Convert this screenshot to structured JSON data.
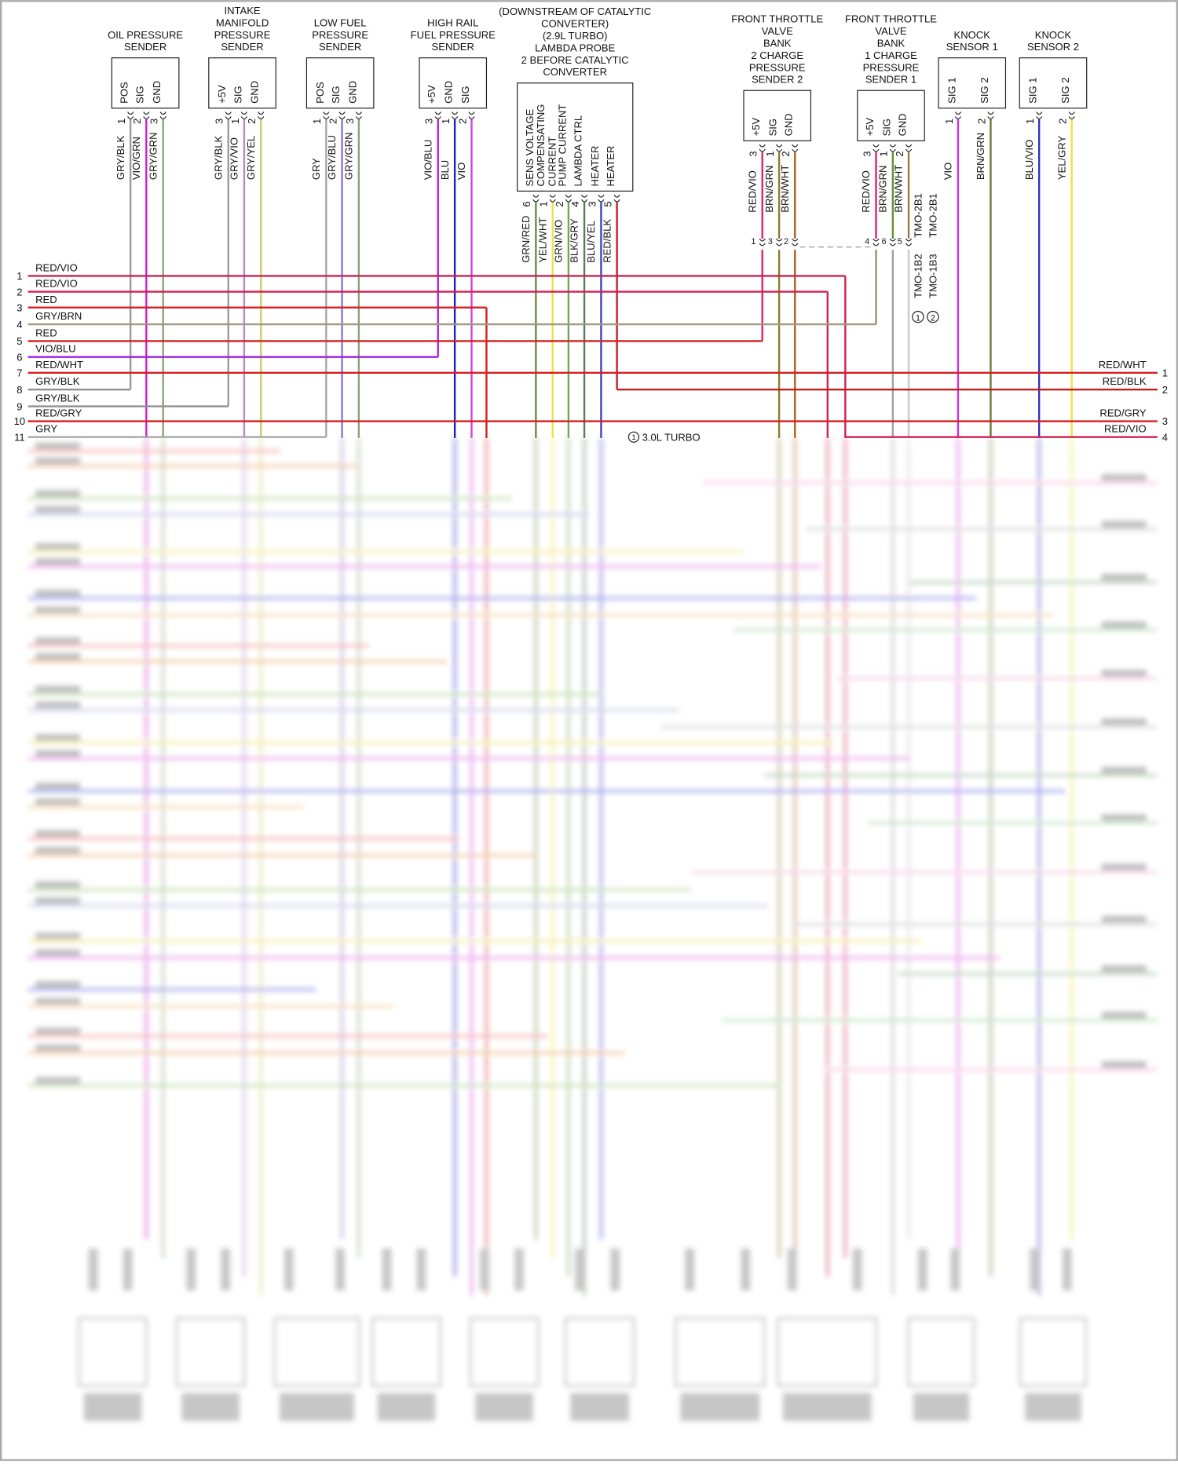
{
  "components": [
    {
      "title": [
        "OIL PRESSURE",
        "SENDER"
      ],
      "pins": [
        {
          "num": 1,
          "name": [
            "POS"
          ],
          "wire": "GRY/BLK",
          "color": "#9a9a9a"
        },
        {
          "num": 2,
          "name": [
            "SIG"
          ],
          "wire": "VIO/GRN",
          "color": "#c81fc8"
        },
        {
          "num": 3,
          "name": [
            "GND"
          ],
          "wire": "GRY/GRN",
          "color": "#8aa27a"
        }
      ]
    },
    {
      "title": [
        "INTAKE",
        "MANIFOLD",
        "PRESSURE",
        "SENDER"
      ],
      "pins": [
        {
          "num": 3,
          "name": [
            "+5V"
          ],
          "wire": "GRY/BLK",
          "color": "#9a9a9a"
        },
        {
          "num": 1,
          "name": [
            "SIG"
          ],
          "wire": "GRY/VIO",
          "color": "#b888c8"
        },
        {
          "num": 2,
          "name": [
            "GND"
          ],
          "wire": "GRY/YEL",
          "color": "#d0cc60"
        }
      ]
    },
    {
      "title": [
        "LOW FUEL",
        "PRESSURE",
        "SENDER"
      ],
      "pins": [
        {
          "num": 1,
          "name": [
            "POS"
          ],
          "wire": "GRY",
          "color": "#a8a8a8"
        },
        {
          "num": 2,
          "name": [
            "SIG"
          ],
          "wire": "GRY/BLU",
          "color": "#8c78c0"
        },
        {
          "num": 3,
          "name": [
            "GND"
          ],
          "wire": "GRY/GRN",
          "color": "#8aa27a"
        }
      ]
    },
    {
      "title": [
        "HIGH RAIL",
        "FUEL PRESSURE",
        "SENDER"
      ],
      "pins": [
        {
          "num": 3,
          "name": [
            "+5V"
          ],
          "wire": "VIO/BLU",
          "color": "#b020d8"
        },
        {
          "num": 1,
          "name": [
            "GND"
          ],
          "wire": "BLU",
          "color": "#2020c0"
        },
        {
          "num": 2,
          "name": [
            "SIG"
          ],
          "wire": "VIO",
          "color": "#d040e0"
        }
      ]
    },
    {
      "title": [
        "(DOWNSTREAM OF CATALYTIC",
        "CONVERTER)",
        "(2.9L TURBO)",
        "LAMBDA PROBE",
        "2 BEFORE CATALYTIC",
        "CONVERTER"
      ],
      "pins": [
        {
          "num": 6,
          "name": [
            "SENS VOLTAGE"
          ],
          "wire": "GRN/RED",
          "color": "#6a8a40"
        },
        {
          "num": 1,
          "name": [
            "COMPENSATING",
            "CURRENT"
          ],
          "wire": "YEL/WHT",
          "color": "#f0e040"
        },
        {
          "num": 2,
          "name": [
            "PUMP CURRENT"
          ],
          "wire": "GRN/VIO",
          "color": "#70a850"
        },
        {
          "num": 4,
          "name": [
            "LAMBDA CTRL"
          ],
          "wire": "BLK/GRY",
          "color": "#5a7a5a"
        },
        {
          "num": 3,
          "name": [
            "HEATER"
          ],
          "wire": "BLU/YEL",
          "color": "#4040c8"
        },
        {
          "num": 5,
          "name": [
            "HEATER"
          ],
          "wire": "RED/BLK",
          "color": "#c02020"
        }
      ]
    },
    {
      "title": [
        "FRONT THROTTLE",
        "VALVE",
        "BANK",
        "2 CHARGE",
        "PRESSURE",
        "SENDER 2"
      ],
      "conn_pins": [
        1,
        3,
        2
      ],
      "pins": [
        {
          "num": 3,
          "name": [
            "+5V"
          ],
          "wire": "RED/VIO",
          "color": "#e0206a"
        },
        {
          "num": 1,
          "name": [
            "SIG"
          ],
          "wire": "BRN/GRN",
          "color": "#8a7a30"
        },
        {
          "num": 2,
          "name": [
            "GND"
          ],
          "wire": "BRN/WHT",
          "color": "#b06020"
        }
      ]
    },
    {
      "title": [
        "FRONT THROTTLE",
        "VALVE",
        "BANK",
        "1 CHARGE",
        "PRESSURE",
        "SENDER 1"
      ],
      "conn_pins": [
        4,
        6,
        5
      ],
      "pins": [
        {
          "num": 3,
          "name": [
            "+5V"
          ],
          "wire": "RED/VIO",
          "color": "#e0206a"
        },
        {
          "num": 1,
          "name": [
            "SIG"
          ],
          "wire": "BRN/GRN",
          "color": "#6a8a30"
        },
        {
          "num": 2,
          "name": [
            "GND"
          ],
          "wire": "BRN/WHT",
          "color": "#9a7a40"
        }
      ]
    },
    {
      "title": [
        "KNOCK",
        "SENSOR 1"
      ],
      "pins": [
        {
          "num": 1,
          "name": [
            "SIG 1"
          ],
          "wire": "VIO",
          "color": "#d030d8"
        },
        {
          "num": 2,
          "name": [
            "SIG 2"
          ],
          "wire": "BRN/GRN",
          "color": "#6a7a30"
        }
      ]
    },
    {
      "title": [
        "KNOCK",
        "SENSOR 2"
      ],
      "pins": [
        {
          "num": 1,
          "name": [
            "SIG 1"
          ],
          "wire": "BLU/VIO",
          "color": "#3030c0"
        },
        {
          "num": 2,
          "name": [
            "SIG 2"
          ],
          "wire": "YEL/GRY",
          "color": "#f0e040"
        }
      ]
    }
  ],
  "bus_left": [
    {
      "num": 1,
      "label": "RED/VIO",
      "color": "#d02050"
    },
    {
      "num": 2,
      "label": "RED/VIO",
      "color": "#d02050"
    },
    {
      "num": 3,
      "label": "RED",
      "color": "#d42020"
    },
    {
      "num": 4,
      "label": "GRY/BRN",
      "color": "#a09a80"
    },
    {
      "num": 5,
      "label": "RED",
      "color": "#d42020"
    },
    {
      "num": 6,
      "label": "VIO/BLU",
      "color": "#a020e0"
    },
    {
      "num": 7,
      "label": "RED/WHT",
      "color": "#d42020"
    },
    {
      "num": 8,
      "label": "GRY/BLK",
      "color": "#909090"
    },
    {
      "num": 9,
      "label": "GRY/BLK",
      "color": "#909090"
    },
    {
      "num": 10,
      "label": "RED/GRY",
      "color": "#d42020"
    },
    {
      "num": 11,
      "label": "GRY",
      "color": "#a8a8a8"
    }
  ],
  "bus_right": [
    {
      "num": 1,
      "label": "RED/WHT"
    },
    {
      "num": 2,
      "label": "RED/BLK"
    },
    {
      "num": 3,
      "label": "RED/GRY"
    },
    {
      "num": 4,
      "label": "RED/VIO"
    }
  ],
  "connector_labels": [
    "TMO-2B1",
    "TMO-2B1",
    "TMO-1B2",
    "TMO-1B3"
  ],
  "notes": {
    "ref_1": "1",
    "ref_2": "2",
    "turbo_ref": "1",
    "turbo": "3.0L TURBO"
  }
}
